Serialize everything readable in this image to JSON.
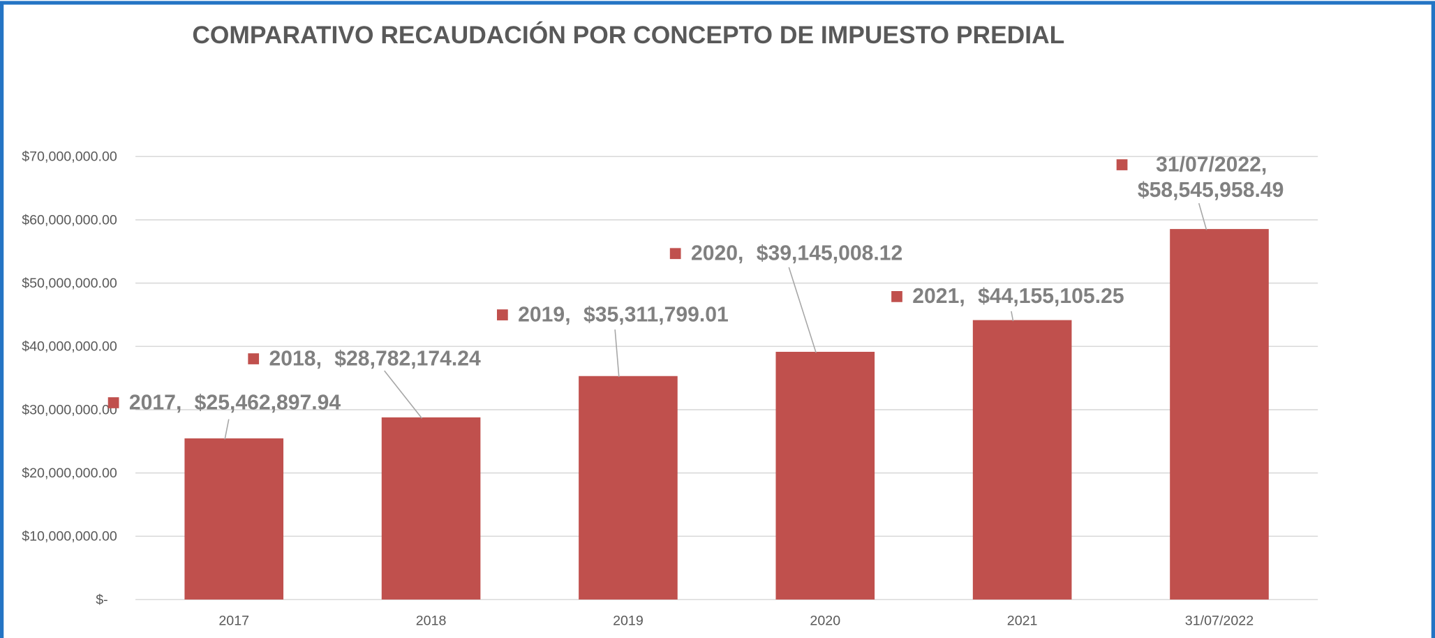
{
  "chart_data": {
    "type": "bar",
    "title": "COMPARATIVO RECAUDACIÓN POR CONCEPTO DE IMPUESTO PREDIAL",
    "categories": [
      "2017",
      "2018",
      "2019",
      "2020",
      "2021",
      "31/07/2022"
    ],
    "values": [
      25462897.94,
      28782174.24,
      35311799.01,
      39145008.12,
      44155105.25,
      58545958.49
    ],
    "value_labels": [
      "$25,462,897.94",
      "$28,782,174.24",
      "$35,311,799.01",
      "$39,145,008.12",
      "$44,155,105.25",
      "$58,545,958.49"
    ],
    "label_separator": ",",
    "color": "#c0504d",
    "ylim": [
      0,
      70000000
    ],
    "yticks": [
      {
        "value": 0,
        "label": "$-"
      },
      {
        "value": 10000000,
        "label": "$10,000,000.00"
      },
      {
        "value": 20000000,
        "label": "$20,000,000.00"
      },
      {
        "value": 30000000,
        "label": "$30,000,000.00"
      },
      {
        "value": 40000000,
        "label": "$40,000,000.00"
      },
      {
        "value": 50000000,
        "label": "$50,000,000.00"
      },
      {
        "value": 60000000,
        "label": "$60,000,000.00"
      },
      {
        "value": 70000000,
        "label": "$70,000,000.00"
      }
    ],
    "grid": true
  }
}
